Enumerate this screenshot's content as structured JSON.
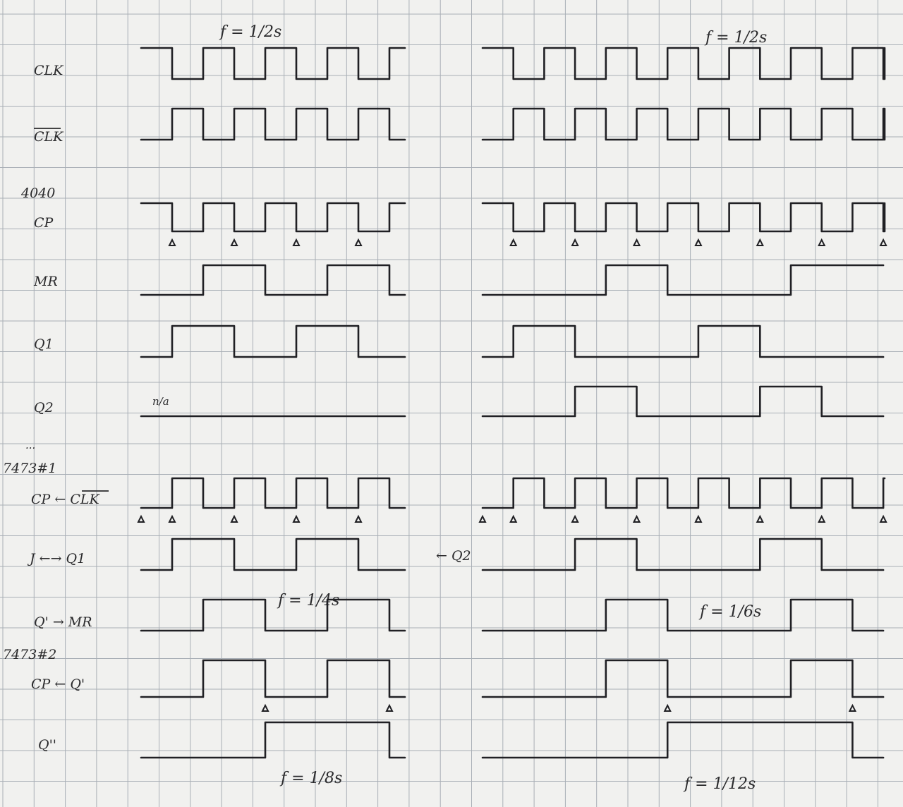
{
  "labels": {
    "clk": "CLK",
    "clk_bar": "CLK",
    "ic_4040": "4040",
    "cp": "CP",
    "mr": "MR",
    "q1": "Q1",
    "q2": "Q2",
    "dots": "...",
    "ic_7473_1": "7473#1",
    "cp_clk_bar": "CP ← CLK",
    "j_q1": "J ←→ Q1",
    "qprime_mr": "Q' → MR",
    "ic_7473_2": "7473#2",
    "cp_qprime": "CP ← Q'",
    "qdouble": "Q''"
  },
  "annotations": {
    "freq_left_top": "f = 1/2s",
    "freq_right_top": "f = 1/2s",
    "q2_na": "n/a",
    "q2_arrow": "← Q2",
    "freq_left_mid": "f = 1/4s",
    "freq_right_mid": "f = 1/6s",
    "freq_left_bottom": "f = 1/8s",
    "freq_right_bottom": "f = 1/12s"
  },
  "waveforms": {
    "left": [
      {
        "signal": "CLK",
        "levels": [
          1,
          0,
          1,
          0,
          1,
          0,
          1,
          0,
          1
        ],
        "final": 1
      },
      {
        "signal": "CLK_bar",
        "levels": [
          0,
          1,
          0,
          1,
          0,
          1,
          0,
          1,
          0
        ],
        "final": 0
      },
      {
        "signal": "CP",
        "levels": [
          1,
          0,
          1,
          0,
          1,
          0,
          1,
          0,
          1
        ],
        "final": 1,
        "falling_edges_marked": true
      },
      {
        "signal": "MR",
        "levels": [
          0,
          0,
          1,
          1,
          0,
          0,
          1,
          1,
          0
        ]
      },
      {
        "signal": "Q1",
        "levels": [
          0,
          1,
          1,
          0,
          0,
          1,
          1,
          0,
          0
        ]
      },
      {
        "signal": "Q2",
        "levels": [
          0,
          0,
          0,
          0,
          0,
          0,
          0,
          0,
          0
        ]
      },
      {
        "signal": "CP_7473_1",
        "levels": [
          0,
          1,
          0,
          1,
          0,
          1,
          0,
          1,
          0
        ],
        "rising_edges_marked": true
      },
      {
        "signal": "J",
        "levels": [
          0,
          1,
          1,
          0,
          0,
          1,
          1,
          0,
          0
        ]
      },
      {
        "signal": "Qprime_MR",
        "levels": [
          0,
          0,
          1,
          1,
          0,
          0,
          1,
          1,
          0
        ]
      },
      {
        "signal": "CP_7473_2",
        "levels": [
          0,
          0,
          1,
          1,
          0,
          0,
          1,
          1,
          0
        ],
        "falling_edges_marked": true
      },
      {
        "signal": "Qdouble",
        "levels": [
          0,
          0,
          0,
          0,
          1,
          1,
          1,
          1,
          0
        ]
      }
    ],
    "right": [
      {
        "signal": "CLK",
        "levels": [
          1,
          0,
          1,
          0,
          1,
          0,
          1,
          0,
          1,
          0,
          1,
          0,
          1,
          0
        ],
        "final": 1
      },
      {
        "signal": "CLK_bar",
        "levels": [
          0,
          1,
          0,
          1,
          0,
          1,
          0,
          1,
          0,
          1,
          0,
          1,
          0,
          1
        ],
        "final": 0
      },
      {
        "signal": "CP",
        "levels": [
          1,
          0,
          1,
          0,
          1,
          0,
          1,
          0,
          1,
          0,
          1,
          0,
          1,
          0
        ],
        "final": 1,
        "falling_edges_marked": true
      },
      {
        "signal": "MR",
        "levels": [
          0,
          0,
          0,
          0,
          1,
          1,
          0,
          0,
          0,
          0,
          1,
          1,
          1
        ]
      },
      {
        "signal": "Q1",
        "levels": [
          0,
          1,
          1,
          0,
          0,
          0,
          0,
          1,
          1,
          0,
          0,
          0,
          0
        ]
      },
      {
        "signal": "Q2",
        "levels": [
          0,
          0,
          0,
          1,
          1,
          0,
          0,
          0,
          0,
          1,
          1,
          0,
          0
        ]
      },
      {
        "signal": "CP_7473_1",
        "levels": [
          0,
          1,
          0,
          1,
          0,
          1,
          0,
          1,
          0,
          1,
          0,
          1,
          0,
          1
        ],
        "rising_edges_marked": true
      },
      {
        "signal": "J",
        "levels": [
          0,
          0,
          0,
          1,
          1,
          0,
          0,
          0,
          0,
          1,
          1,
          0,
          0
        ]
      },
      {
        "signal": "Qprime_MR",
        "levels": [
          0,
          0,
          0,
          0,
          1,
          1,
          0,
          0,
          0,
          0,
          1,
          1,
          0
        ]
      },
      {
        "signal": "CP_7473_2",
        "levels": [
          0,
          0,
          0,
          0,
          1,
          1,
          0,
          0,
          0,
          0,
          1,
          1,
          0
        ],
        "falling_edges_marked": true
      },
      {
        "signal": "Qdouble",
        "levels": [
          0,
          0,
          0,
          0,
          0,
          0,
          1,
          1,
          1,
          1,
          1,
          1,
          0
        ]
      }
    ]
  },
  "colors": {
    "paper": "#f1f1ef",
    "grid": "#a9afb6",
    "ink": "#202024"
  }
}
